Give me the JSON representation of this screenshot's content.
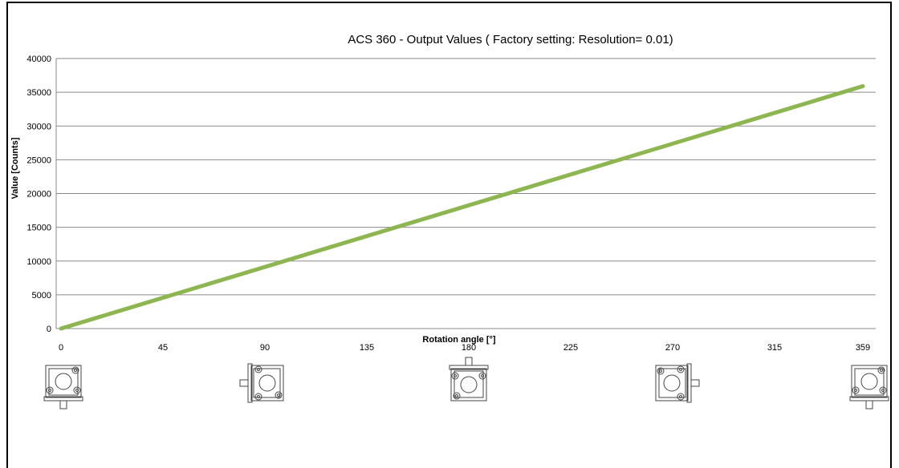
{
  "chart_data": {
    "type": "line",
    "title": "ACS 360 - Output  Values  ( Factory setting: Resolution= 0.01)",
    "xlabel": "Rotation angle  [°]",
    "ylabel": "Value  [Counts]",
    "ylim": [
      0,
      40000
    ],
    "xlim": [
      0,
      359
    ],
    "yticks": [
      0,
      5000,
      10000,
      15000,
      20000,
      25000,
      30000,
      35000,
      40000
    ],
    "ytick_labels": [
      "0",
      "5000",
      "10000",
      "15000",
      "20000",
      "25000",
      "30000",
      "35000",
      "40000"
    ],
    "xticks": [
      0,
      45,
      90,
      135,
      180,
      225,
      270,
      315,
      359
    ],
    "xtick_labels": [
      "0",
      "45",
      "90",
      "135",
      "180",
      "225",
      "270",
      "315",
      "359"
    ],
    "grid": true,
    "series": [
      {
        "x": [
          0,
          359
        ],
        "y": [
          0,
          35900
        ],
        "color": "#8db651"
      }
    ],
    "sensor_icons": [
      {
        "angle": 0,
        "icon": "sensor-housing-icon",
        "rotation": 0
      },
      {
        "angle": 90,
        "icon": "sensor-housing-icon",
        "rotation": 90
      },
      {
        "angle": 180,
        "icon": "sensor-housing-icon",
        "rotation": 180
      },
      {
        "angle": 270,
        "icon": "sensor-housing-icon",
        "rotation": 270
      },
      {
        "angle": 359,
        "icon": "sensor-housing-icon",
        "rotation": 0
      }
    ]
  }
}
